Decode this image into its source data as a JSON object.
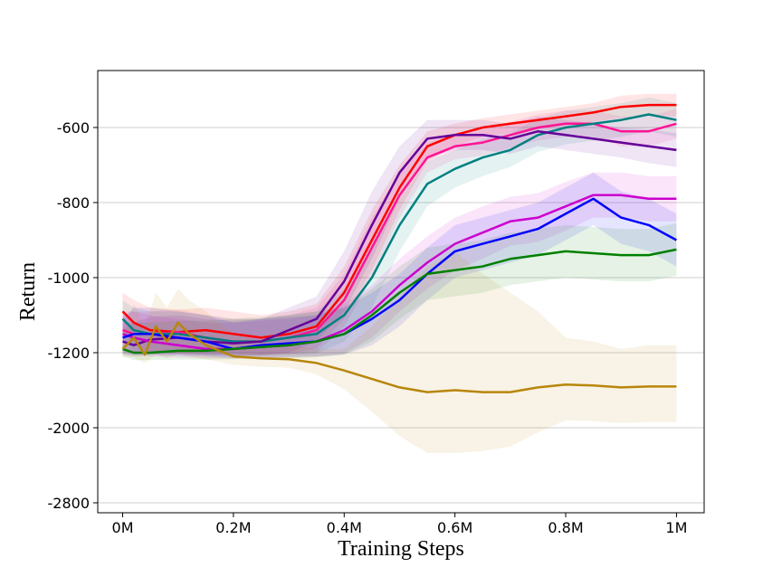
{
  "chart_data": {
    "type": "line",
    "xlabel": "Training Steps",
    "ylabel": "Return",
    "x_tick_labels": [
      "0M",
      "0.2M",
      "0.4M",
      "0.6M",
      "0.8M",
      "1M"
    ],
    "x_tick_values": [
      0,
      0.2,
      0.4,
      0.6,
      0.8,
      1.0
    ],
    "y_tick_labels": [
      "-600",
      "-800",
      "-1000",
      "-1200",
      "-2000",
      "-2800"
    ],
    "xlim": [
      -0.045,
      1.05
    ],
    "grid": "horizontal",
    "legend": "none",
    "series": [
      {
        "color": "#ff0000",
        "x": [
          0,
          0.02,
          0.05,
          0.1,
          0.15,
          0.2,
          0.25,
          0.3,
          0.35,
          0.4,
          0.45,
          0.5,
          0.55,
          0.6,
          0.65,
          0.7,
          0.75,
          0.8,
          0.85,
          0.9,
          0.95,
          1.0
        ],
        "y": [
          -1090,
          -1120,
          -1140,
          -1145,
          -1140,
          -1150,
          -1160,
          -1150,
          -1130,
          -1040,
          -900,
          -760,
          -650,
          -620,
          -600,
          -590,
          -580,
          -570,
          -560,
          -545,
          -540,
          -540
        ],
        "band": [
          50,
          60,
          60,
          60,
          60,
          60,
          60,
          60,
          60,
          70,
          80,
          60,
          40,
          30,
          25,
          25,
          25,
          25,
          25,
          30,
          30,
          30
        ]
      },
      {
        "color": "#ff1493",
        "x": [
          0,
          0.02,
          0.05,
          0.1,
          0.15,
          0.2,
          0.25,
          0.3,
          0.35,
          0.4,
          0.45,
          0.5,
          0.55,
          0.6,
          0.65,
          0.7,
          0.75,
          0.8,
          0.85,
          0.9,
          0.95,
          1.0
        ],
        "y": [
          -1140,
          -1150,
          -1150,
          -1145,
          -1160,
          -1170,
          -1170,
          -1160,
          -1140,
          -1060,
          -920,
          -780,
          -680,
          -650,
          -640,
          -620,
          -600,
          -590,
          -590,
          -610,
          -610,
          -590
        ],
        "band": [
          50,
          60,
          60,
          60,
          60,
          60,
          60,
          60,
          60,
          70,
          80,
          60,
          40,
          35,
          35,
          35,
          35,
          35,
          35,
          40,
          40,
          40
        ]
      },
      {
        "color": "#008080",
        "x": [
          0,
          0.02,
          0.05,
          0.1,
          0.15,
          0.2,
          0.25,
          0.3,
          0.35,
          0.4,
          0.45,
          0.5,
          0.55,
          0.6,
          0.65,
          0.7,
          0.75,
          0.8,
          0.85,
          0.9,
          0.95,
          1.0
        ],
        "y": [
          -1110,
          -1140,
          -1150,
          -1150,
          -1160,
          -1170,
          -1170,
          -1160,
          -1150,
          -1100,
          -1000,
          -860,
          -750,
          -710,
          -680,
          -660,
          -620,
          -600,
          -590,
          -580,
          -565,
          -580
        ],
        "band": [
          50,
          60,
          60,
          60,
          60,
          60,
          60,
          60,
          60,
          70,
          80,
          70,
          60,
          50,
          50,
          45,
          45,
          45,
          45,
          45,
          45,
          45
        ]
      },
      {
        "color": "#660099",
        "x": [
          0,
          0.02,
          0.05,
          0.1,
          0.15,
          0.2,
          0.25,
          0.3,
          0.35,
          0.4,
          0.45,
          0.5,
          0.55,
          0.6,
          0.65,
          0.7,
          0.75,
          0.8,
          0.85,
          0.9,
          0.95,
          1.0
        ],
        "y": [
          -1170,
          -1180,
          -1165,
          -1160,
          -1170,
          -1175,
          -1170,
          -1140,
          -1110,
          -1010,
          -860,
          -720,
          -630,
          -620,
          -620,
          -630,
          -610,
          -620,
          -630,
          -640,
          -650,
          -660
        ],
        "band": [
          50,
          60,
          60,
          60,
          60,
          60,
          60,
          60,
          60,
          80,
          90,
          70,
          50,
          40,
          40,
          40,
          40,
          40,
          40,
          40,
          45,
          45
        ]
      },
      {
        "color": "#cc00cc",
        "x": [
          0,
          0.02,
          0.05,
          0.1,
          0.15,
          0.2,
          0.25,
          0.3,
          0.35,
          0.4,
          0.45,
          0.5,
          0.55,
          0.6,
          0.65,
          0.7,
          0.75,
          0.8,
          0.85,
          0.9,
          0.95,
          1.0
        ],
        "y": [
          -1150,
          -1160,
          -1170,
          -1180,
          -1190,
          -1190,
          -1185,
          -1180,
          -1170,
          -1140,
          -1090,
          -1020,
          -960,
          -910,
          -880,
          -850,
          -840,
          -810,
          -780,
          -780,
          -790,
          -790
        ],
        "band": [
          50,
          70,
          70,
          70,
          70,
          70,
          70,
          70,
          70,
          70,
          70,
          70,
          70,
          70,
          70,
          65,
          65,
          65,
          60,
          60,
          60,
          60
        ]
      },
      {
        "color": "#0000ff",
        "x": [
          0,
          0.02,
          0.05,
          0.1,
          0.15,
          0.2,
          0.25,
          0.3,
          0.35,
          0.4,
          0.45,
          0.5,
          0.55,
          0.6,
          0.65,
          0.7,
          0.75,
          0.8,
          0.85,
          0.9,
          0.95,
          1.0
        ],
        "y": [
          -1160,
          -1150,
          -1150,
          -1160,
          -1170,
          -1190,
          -1180,
          -1175,
          -1170,
          -1150,
          -1110,
          -1060,
          -990,
          -930,
          -910,
          -890,
          -870,
          -830,
          -790,
          -840,
          -860,
          -900
        ],
        "band": [
          50,
          70,
          70,
          70,
          70,
          70,
          70,
          70,
          70,
          70,
          70,
          70,
          70,
          70,
          70,
          70,
          70,
          70,
          70,
          70,
          70,
          70
        ]
      },
      {
        "color": "#008000",
        "x": [
          0,
          0.02,
          0.05,
          0.1,
          0.15,
          0.2,
          0.25,
          0.3,
          0.35,
          0.4,
          0.45,
          0.5,
          0.55,
          0.6,
          0.65,
          0.7,
          0.75,
          0.8,
          0.85,
          0.9,
          0.95,
          1.0
        ],
        "y": [
          -1190,
          -1200,
          -1200,
          -1195,
          -1195,
          -1190,
          -1185,
          -1180,
          -1170,
          -1150,
          -1100,
          -1040,
          -990,
          -980,
          -970,
          -950,
          -940,
          -930,
          -935,
          -940,
          -940,
          -925
        ],
        "band": [
          50,
          80,
          80,
          80,
          80,
          80,
          80,
          80,
          80,
          70,
          70,
          70,
          70,
          70,
          70,
          70,
          70,
          70,
          70,
          70,
          70,
          70
        ]
      },
      {
        "color": "#b8860b",
        "x": [
          0,
          0.02,
          0.04,
          0.06,
          0.08,
          0.1,
          0.12,
          0.15,
          0.2,
          0.25,
          0.3,
          0.35,
          0.4,
          0.45,
          0.5,
          0.55,
          0.6,
          0.65,
          0.7,
          0.75,
          0.8,
          0.85,
          0.9,
          0.95,
          1.0
        ],
        "y": [
          -1190,
          -1160,
          -1220,
          -1130,
          -1170,
          -1120,
          -1150,
          -1180,
          -1240,
          -1260,
          -1270,
          -1310,
          -1390,
          -1480,
          -1570,
          -1620,
          -1600,
          -1620,
          -1620,
          -1570,
          -1540,
          -1550,
          -1570,
          -1560,
          -1560
        ],
        "band": [
          50,
          90,
          90,
          90,
          90,
          90,
          90,
          90,
          90,
          90,
          90,
          120,
          200,
          350,
          520,
          650,
          670,
          630,
          580,
          480,
          380,
          380,
          380,
          380,
          380
        ]
      }
    ]
  }
}
